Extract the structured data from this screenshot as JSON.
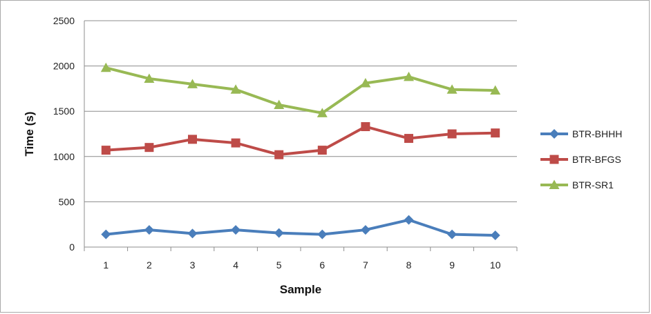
{
  "chart_data": {
    "type": "line",
    "title": "",
    "xlabel": "Sample",
    "ylabel": "Time (s)",
    "categories": [
      "1",
      "2",
      "3",
      "4",
      "5",
      "6",
      "7",
      "8",
      "9",
      "10"
    ],
    "ylim": [
      0,
      2500
    ],
    "yticks": [
      "0",
      "500",
      "1000",
      "1500",
      "2000",
      "2500"
    ],
    "grid": "horizontal",
    "legend_position": "right",
    "series": [
      {
        "name": "BTR-BHHH",
        "color": "#4a7ebb",
        "marker": "diamond",
        "values": [
          140,
          190,
          150,
          190,
          155,
          140,
          190,
          300,
          140,
          130
        ]
      },
      {
        "name": "BTR-BFGS",
        "color": "#be4b48",
        "marker": "square",
        "values": [
          1070,
          1100,
          1190,
          1150,
          1020,
          1070,
          1330,
          1200,
          1250,
          1260
        ]
      },
      {
        "name": "BTR-SR1",
        "color": "#98b954",
        "marker": "triangle",
        "values": [
          1980,
          1860,
          1800,
          1740,
          1570,
          1480,
          1810,
          1880,
          1740,
          1730
        ]
      }
    ]
  }
}
